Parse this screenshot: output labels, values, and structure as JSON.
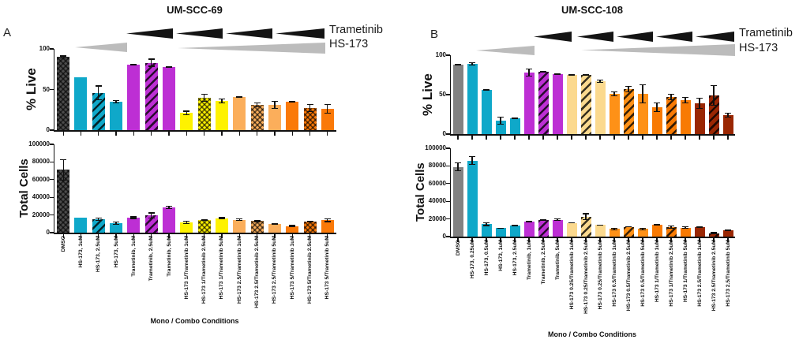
{
  "chart_data": [
    {
      "panel_letter": "A",
      "title": "UM-SCC-69",
      "type": "bar",
      "xlabel": "Mono / Combo Conditions",
      "legend_position": "top-right",
      "grid": false,
      "dose_wedges": {
        "top_label": "Trametinib",
        "top_color": "#141414",
        "bottom_label": "HS-173",
        "bottom_color": "#bcbcbc"
      },
      "categories": [
        "DMSO",
        "HS-173, 1uM",
        "HS-173, 2.5uM",
        "HS-173, 5uM",
        "Trametinib, 1uM",
        "Trametinib, 2.5uM",
        "Trametinib, 5uM",
        "HS-173 1/Trametinib 1uM",
        "HS-173 1/Trametinib 2.5uM",
        "HS-173 1/Trametinib 5uM",
        "HS-173 2.5/Trametinib 1uM",
        "HS-173 2.5/Trametinib 2.5uM",
        "HS-173 2.5/Trametinib 5uM",
        "HS-173 5/Trametinib 1uM",
        "HS-173 5/Trametinib 2.5uM",
        "HS-173 5/Trametinib 5uM"
      ],
      "bar_colors": [
        "#4c4c4c",
        "#0fa8c9",
        "#0fa8c9",
        "#0fa8c9",
        "#bd2fd4",
        "#bd2fd4",
        "#bd2fd4",
        "#fef200",
        "#fef200",
        "#fef200",
        "#fbae5b",
        "#fbae5b",
        "#fbae5b",
        "#fa7908",
        "#fa7908",
        "#fa7908"
      ],
      "bar_patterns": [
        "check",
        "solid",
        "hatch",
        "solid",
        "solid",
        "hatch",
        "solid",
        "solid",
        "check",
        "solid",
        "solid",
        "check",
        "solid",
        "solid",
        "check",
        "solid"
      ],
      "charts": [
        {
          "ylabel": "% Live",
          "ylim": [
            0,
            100
          ],
          "yticks": [
            0,
            50,
            100
          ],
          "values": [
            90,
            65,
            46,
            35,
            81,
            83,
            78,
            21,
            40,
            36,
            41,
            31,
            31,
            35,
            27,
            26
          ],
          "errors": [
            2,
            0,
            9,
            2,
            1,
            5,
            1,
            3,
            5,
            3,
            1,
            3,
            5,
            1,
            5,
            6
          ]
        },
        {
          "ylabel": "Total Cells",
          "ylim": [
            0,
            100000
          ],
          "yticks": [
            0,
            20000,
            40000,
            60000,
            80000,
            100000
          ],
          "values": [
            71000,
            17000,
            15000,
            10500,
            17000,
            19500,
            28500,
            11500,
            14500,
            16500,
            14500,
            13000,
            10000,
            7500,
            12500,
            14000
          ],
          "errors": [
            12000,
            0,
            2000,
            2000,
            1500,
            3500,
            2000,
            2000,
            1000,
            1000,
            1500,
            1000,
            700,
            1200,
            1000,
            2000
          ]
        }
      ]
    },
    {
      "panel_letter": "B",
      "title": "UM-SCC-108",
      "type": "bar",
      "xlabel": "Mono / Combo Conditions",
      "legend_position": "top-right",
      "grid": false,
      "dose_wedges": {
        "top_label": "Trametinib",
        "top_color": "#141414",
        "bottom_label": "HS-173",
        "bottom_color": "#bcbcbc"
      },
      "categories": [
        "DMSO",
        "HS-173, 0.25uM",
        "HS-173, 0.5uM",
        "HS-173, 1uM",
        "HS-173, 2.5uM",
        "Trametinib, 1uM",
        "Trametinib, 2.5uM",
        "Trametinib, 5uM",
        "HS-173 0.25/Trametinib 1uM",
        "HS-173 0.25/Trametinib 2.5uM",
        "HS-173 0.25/Trametinib 5uM",
        "HS-173 0.5/Trametinib 1uM",
        "HS-173 0.5/Trametinib 2.5uM",
        "HS-173 0.5/Trametinib 5uM",
        "HS-173 1/Trametinib 1uM",
        "HS-173 1/Trametinib 2.5uM",
        "HS-173 1/Trametinib 5uM",
        "HS-173 2.5/Trametinib 1uM",
        "HS-173 2.5/Trametinib 2.5uM",
        "HS-173 2.5/Trametinib 5uM"
      ],
      "bar_colors": [
        "#828282",
        "#0fa8c9",
        "#0fa8c9",
        "#0fa8c9",
        "#0fa8c9",
        "#bd2fd4",
        "#bd2fd4",
        "#bd2fd4",
        "#fbd98e",
        "#fbd98e",
        "#fbd98e",
        "#fe9117",
        "#fe9117",
        "#fe9117",
        "#f87a03",
        "#f87a03",
        "#f87a03",
        "#9a2703",
        "#9a2703",
        "#9a2703"
      ],
      "bar_patterns": [
        "solid",
        "solid",
        "solid",
        "solid",
        "solid",
        "solid",
        "hatch",
        "solid",
        "solid",
        "hatch",
        "solid",
        "solid",
        "hatch",
        "solid",
        "solid",
        "hatch",
        "solid",
        "solid",
        "hatch",
        "solid"
      ],
      "charts": [
        {
          "ylabel": "% Live",
          "ylim": [
            0,
            100
          ],
          "yticks": [
            0,
            50,
            100
          ],
          "values": [
            88,
            89,
            56,
            17,
            20,
            78,
            79,
            76,
            75,
            75,
            67,
            51,
            57,
            51,
            34,
            47,
            43,
            39,
            49,
            24
          ],
          "errors": [
            1,
            2,
            1,
            5,
            1,
            5,
            1,
            1,
            1,
            1,
            2,
            3,
            4,
            12,
            6,
            4,
            4,
            7,
            13,
            3
          ]
        },
        {
          "ylabel": "Total Cells",
          "ylim": [
            0,
            100000
          ],
          "yticks": [
            0,
            20000,
            40000,
            60000,
            80000,
            100000
          ],
          "values": [
            79000,
            86000,
            14000,
            9500,
            12500,
            17000,
            19000,
            19000,
            15500,
            22500,
            13000,
            8500,
            11000,
            8500,
            13500,
            10500,
            10000,
            10500,
            4000,
            7000
          ],
          "errors": [
            5000,
            5000,
            2000,
            700,
            1000,
            1000,
            1000,
            1500,
            700,
            4000,
            700,
            1500,
            700,
            1500,
            700,
            2000,
            1500,
            700,
            1000,
            500
          ]
        }
      ]
    }
  ]
}
